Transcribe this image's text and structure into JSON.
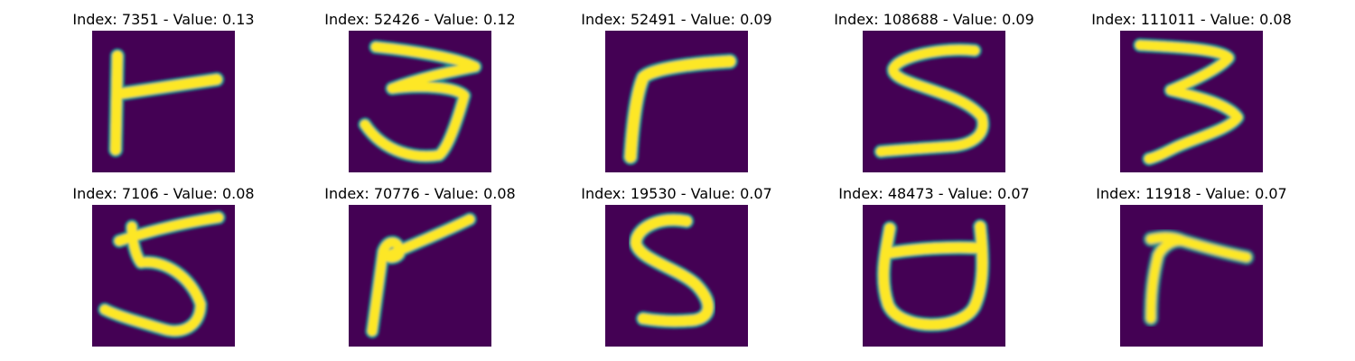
{
  "colors": {
    "background": "#440154",
    "low": "#440154",
    "mid1": "#31688e",
    "mid2": "#21918c",
    "mid3": "#5ec962",
    "high": "#fde725"
  },
  "panels": [
    {
      "title": "Index: 7351 - Value: 0.13",
      "digit_shape": "vertical stroke with arm to right"
    },
    {
      "title": "Index: 52426 - Value: 0.12",
      "digit_shape": "three"
    },
    {
      "title": "Index: 52491 - Value: 0.09",
      "digit_shape": "seven-like bent stroke"
    },
    {
      "title": "Index: 108688 - Value: 0.09",
      "digit_shape": "s-curve"
    },
    {
      "title": "Index: 111011 - Value: 0.08",
      "digit_shape": "three"
    },
    {
      "title": "Index: 7106 - Value: 0.08",
      "digit_shape": "five"
    },
    {
      "title": "Index: 70776 - Value: 0.08",
      "digit_shape": "bent stroke with arm"
    },
    {
      "title": "Index: 19530 - Value: 0.07",
      "digit_shape": "s-curve"
    },
    {
      "title": "Index: 48473 - Value: 0.07",
      "digit_shape": "cup shape"
    },
    {
      "title": "Index: 11918 - Value: 0.07",
      "digit_shape": "short bent stroke"
    }
  ]
}
